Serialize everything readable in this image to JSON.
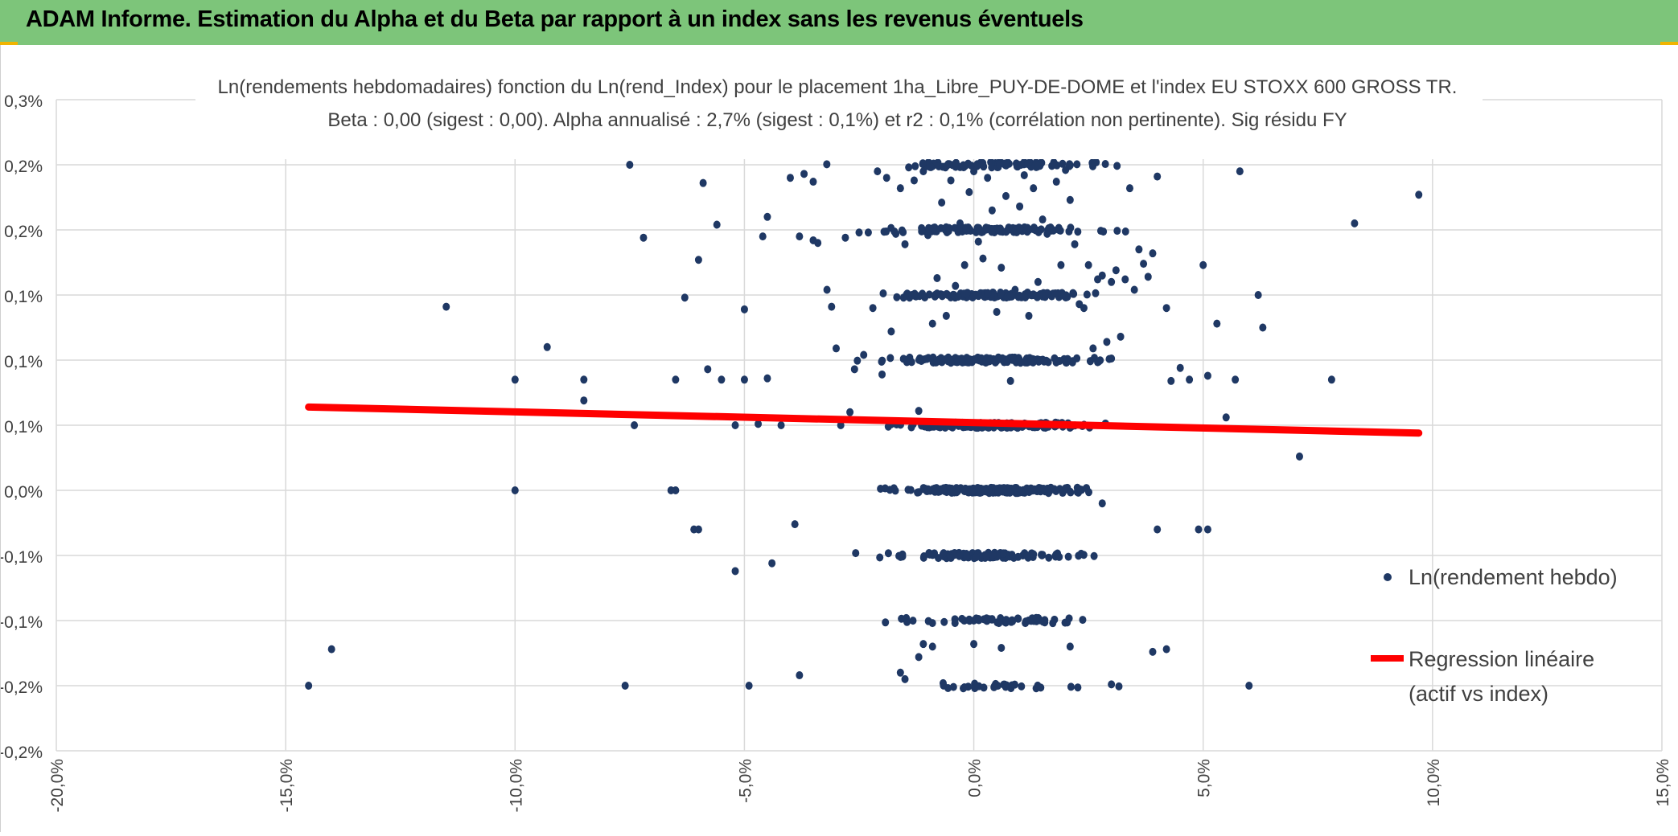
{
  "header": {
    "title": "ADAM Informe. Estimation du Alpha et du Beta par rapport à un index sans les revenus éventuels"
  },
  "colors": {
    "header_bg": "#7dc57a",
    "points": "#1f3864",
    "regression": "#ff0000",
    "grid": "#d9d9d9"
  },
  "chart_data": {
    "type": "scatter",
    "title": "Ln(rendements hebdomadaires) fonction du Ln(rend_Index) pour le placement 1ha_Libre_PUY-DE-DOME et l'index EU STOXX 600 GROSS TR.",
    "subtitle": "Beta : 0,00 (sigest : 0,00). Alpha annualisé : 2,7% (sigest : 0,1%) et r2 : 0,1% (corrélation non pertinente). Sig résidu FY",
    "xlabel": "",
    "ylabel": "",
    "xlim": [
      -0.2,
      0.15
    ],
    "ylim": [
      -0.002,
      0.003
    ],
    "x_ticks": [
      -0.2,
      -0.15,
      -0.1,
      -0.05,
      0.0,
      0.05,
      0.1,
      0.15
    ],
    "x_tick_labels": [
      "-20,0%",
      "-15,0%",
      "-10,0%",
      "-5,0%",
      "0,0%",
      "5,0%",
      "10,0%",
      "15,0%"
    ],
    "y_ticks": [
      -0.002,
      -0.0015,
      -0.001,
      -0.0005,
      0.0,
      0.0005,
      0.001,
      0.0015,
      0.002,
      0.0025,
      0.003
    ],
    "y_tick_labels": [
      "-0,2%",
      "-0,2%",
      "-0,1%",
      "-0,1%",
      "0,0%",
      "0,1%",
      "0,1%",
      "0,1%",
      "0,2%",
      "0,2%",
      "0,3%"
    ],
    "grid": true,
    "legend_position": "right",
    "series": [
      {
        "name": "Ln(rendement hebdo)",
        "kind": "points",
        "color": "#1f3864",
        "levels": [
          0.0025,
          0.002,
          0.0015,
          0.001,
          0.0005,
          0.0,
          -0.0005,
          -0.001,
          -0.0015
        ],
        "points": [
          [
            -0.145,
            -0.0015
          ],
          [
            -0.14,
            -0.00122
          ],
          [
            -0.115,
            0.00141
          ],
          [
            -0.1,
            0.00085
          ],
          [
            -0.1,
            0.0
          ],
          [
            -0.093,
            0.0011
          ],
          [
            -0.085,
            0.00085
          ],
          [
            -0.085,
            0.00069
          ],
          [
            -0.076,
            -0.0015
          ],
          [
            -0.075,
            0.0025
          ],
          [
            -0.074,
            0.0005
          ],
          [
            -0.072,
            0.00194
          ],
          [
            -0.066,
            0.0
          ],
          [
            -0.065,
            0.0
          ],
          [
            -0.065,
            0.00085
          ],
          [
            -0.063,
            0.00148
          ],
          [
            -0.061,
            -0.0003
          ],
          [
            -0.06,
            -0.0003
          ],
          [
            -0.06,
            0.00177
          ],
          [
            -0.059,
            0.00236
          ],
          [
            -0.058,
            0.00093
          ],
          [
            -0.056,
            0.00204
          ],
          [
            -0.055,
            0.00085
          ],
          [
            -0.052,
            -0.00062
          ],
          [
            -0.052,
            0.0005
          ],
          [
            -0.05,
            0.00139
          ],
          [
            -0.05,
            0.00085
          ],
          [
            -0.049,
            -0.0015
          ],
          [
            -0.047,
            0.00051
          ],
          [
            -0.046,
            0.00195
          ],
          [
            -0.045,
            0.0021
          ],
          [
            -0.045,
            0.00086
          ],
          [
            -0.044,
            -0.00056
          ],
          [
            -0.042,
            0.0005
          ],
          [
            -0.04,
            0.0024
          ],
          [
            -0.039,
            -0.00026
          ],
          [
            -0.038,
            0.00195
          ],
          [
            -0.038,
            -0.00142
          ],
          [
            -0.037,
            0.00243
          ],
          [
            -0.035,
            0.00192
          ],
          [
            -0.035,
            0.00237
          ],
          [
            -0.034,
            0.0019
          ],
          [
            -0.032,
            0.00154
          ],
          [
            -0.031,
            0.00141
          ],
          [
            -0.03,
            0.00109
          ],
          [
            -0.029,
            0.0005
          ],
          [
            -0.028,
            0.00194
          ],
          [
            -0.027,
            0.0006
          ],
          [
            -0.026,
            0.00093
          ],
          [
            -0.025,
            0.00198
          ],
          [
            -0.024,
            0.00104
          ],
          [
            -0.023,
            0.00198
          ],
          [
            -0.022,
            0.0014
          ],
          [
            -0.021,
            0.00245
          ],
          [
            -0.02,
            0.00089
          ],
          [
            -0.019,
            0.0024
          ],
          [
            -0.018,
            0.00122
          ],
          [
            -0.017,
            0.00197
          ],
          [
            -0.016,
            0.00232
          ],
          [
            -0.015,
            0.00189
          ],
          [
            -0.014,
            0.00148
          ],
          [
            -0.013,
            0.00238
          ],
          [
            -0.012,
            0.00061
          ],
          [
            -0.011,
            0.00245
          ],
          [
            -0.01,
            0.00196
          ],
          [
            -0.009,
            0.00128
          ],
          [
            -0.008,
            0.00163
          ],
          [
            -0.007,
            0.00221
          ],
          [
            -0.006,
            0.00134
          ],
          [
            -0.005,
            0.00238
          ],
          [
            -0.004,
            0.00157
          ],
          [
            -0.003,
            0.00205
          ],
          [
            -0.002,
            0.00173
          ],
          [
            -0.001,
            0.00229
          ],
          [
            0.0,
            0.00245
          ],
          [
            0.001,
            0.00191
          ],
          [
            0.002,
            0.00178
          ],
          [
            0.003,
            0.0024
          ],
          [
            0.004,
            0.00215
          ],
          [
            0.005,
            0.00137
          ],
          [
            0.006,
            0.00171
          ],
          [
            0.007,
            0.00226
          ],
          [
            0.008,
            0.00084
          ],
          [
            0.009,
            0.00154
          ],
          [
            0.01,
            0.00218
          ],
          [
            0.011,
            0.00242
          ],
          [
            0.012,
            0.00134
          ],
          [
            0.013,
            0.00232
          ],
          [
            0.014,
            0.0016
          ],
          [
            0.015,
            0.00208
          ],
          [
            0.016,
            0.00197
          ],
          [
            0.017,
            0.00149
          ],
          [
            0.018,
            0.00237
          ],
          [
            0.019,
            0.00173
          ],
          [
            0.02,
            0.00246
          ],
          [
            0.021,
            0.00223
          ],
          [
            0.022,
            0.00189
          ],
          [
            0.023,
            0.00143
          ],
          [
            0.024,
            0.0014
          ],
          [
            0.025,
            0.00173
          ],
          [
            0.026,
            0.00109
          ],
          [
            0.027,
            0.00162
          ],
          [
            0.028,
            0.00165
          ],
          [
            0.029,
            0.00114
          ],
          [
            0.03,
            0.0016
          ],
          [
            0.031,
            0.00169
          ],
          [
            0.032,
            0.00118
          ],
          [
            0.033,
            0.00162
          ],
          [
            0.034,
            0.00232
          ],
          [
            0.035,
            0.00154
          ],
          [
            0.036,
            0.00185
          ],
          [
            0.037,
            0.00174
          ],
          [
            0.038,
            0.00164
          ],
          [
            0.039,
            0.00182
          ],
          [
            0.04,
            0.00241
          ],
          [
            0.042,
            0.0014
          ],
          [
            0.043,
            0.00084
          ],
          [
            0.045,
            0.00094
          ],
          [
            0.047,
            0.00085
          ],
          [
            0.05,
            0.00173
          ],
          [
            0.051,
            0.00088
          ],
          [
            0.053,
            0.00128
          ],
          [
            0.055,
            0.00056
          ],
          [
            0.057,
            0.00085
          ],
          [
            0.058,
            0.00245
          ],
          [
            0.062,
            0.0015
          ],
          [
            0.063,
            0.00125
          ],
          [
            0.071,
            0.00026
          ],
          [
            0.078,
            0.00085
          ],
          [
            0.083,
            0.00205
          ],
          [
            0.097,
            0.00227
          ],
          [
            0.06,
            -0.0015
          ],
          [
            0.042,
            -0.00122
          ],
          [
            0.039,
            -0.00124
          ],
          [
            0.03,
            -0.00149
          ],
          [
            0.021,
            -0.0012
          ],
          [
            0.0,
            -0.001
          ],
          [
            0.0,
            -0.00118
          ],
          [
            0.006,
            -0.00121
          ],
          [
            -0.011,
            -0.00118
          ],
          [
            -0.012,
            -0.00128
          ],
          [
            -0.009,
            -0.0012
          ],
          [
            -0.015,
            -0.00145
          ],
          [
            -0.016,
            -0.0014
          ],
          [
            0.028,
            -0.0001
          ],
          [
            0.04,
            -0.0003
          ],
          [
            0.049,
            -0.0003
          ],
          [
            0.051,
            -0.0003
          ]
        ]
      },
      {
        "name": "Regression linéaire\n(actif vs index)",
        "kind": "line",
        "color": "#ff0000",
        "points": [
          [
            -0.145,
            0.00064
          ],
          [
            0.097,
            0.00044
          ]
        ]
      }
    ]
  }
}
